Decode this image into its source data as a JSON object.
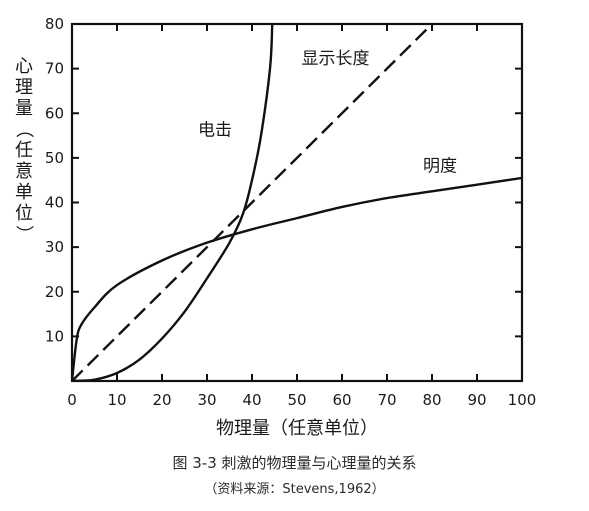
{
  "chart_data": {
    "type": "line",
    "xlabel": "物理量（任意单位）",
    "ylabel": "心理量（任意单位）",
    "xlim": [
      0,
      100
    ],
    "ylim": [
      0,
      80
    ],
    "x_ticks": [
      0,
      10,
      20,
      30,
      40,
      50,
      60,
      70,
      80,
      90,
      100
    ],
    "y_ticks": [
      10,
      20,
      30,
      40,
      50,
      60,
      70,
      80
    ],
    "grid": false,
    "series": [
      {
        "name": "电击",
        "style": "solid",
        "x": [
          0,
          5,
          10,
          15,
          20,
          25,
          30,
          35,
          38,
          40,
          42,
          44,
          44.5
        ],
        "y": [
          0,
          0.3,
          1.8,
          4.8,
          9.5,
          15.5,
          23,
          31,
          37.5,
          45,
          55,
          70,
          80
        ]
      },
      {
        "name": "显示长度",
        "style": "dashed",
        "x": [
          0,
          80
        ],
        "y": [
          0,
          80
        ]
      },
      {
        "name": "明度",
        "style": "solid",
        "x": [
          0,
          1,
          2,
          5,
          10,
          20,
          30,
          40,
          50,
          60,
          70,
          80,
          90,
          100
        ],
        "y": [
          0,
          9,
          12.5,
          16.5,
          21.5,
          27,
          31,
          34,
          36.5,
          39,
          41,
          42.5,
          44,
          45.5
        ]
      }
    ],
    "annotations": [
      {
        "text": "显示长度",
        "x": 51,
        "y": 71
      },
      {
        "text": "电击",
        "x": 28,
        "y": 55
      },
      {
        "text": "明度",
        "x": 78,
        "y": 47
      }
    ]
  },
  "caption": {
    "title": "图 3-3   刺激的物理量与心理量的关系",
    "source": "（资料来源：Stevens,1962）"
  }
}
